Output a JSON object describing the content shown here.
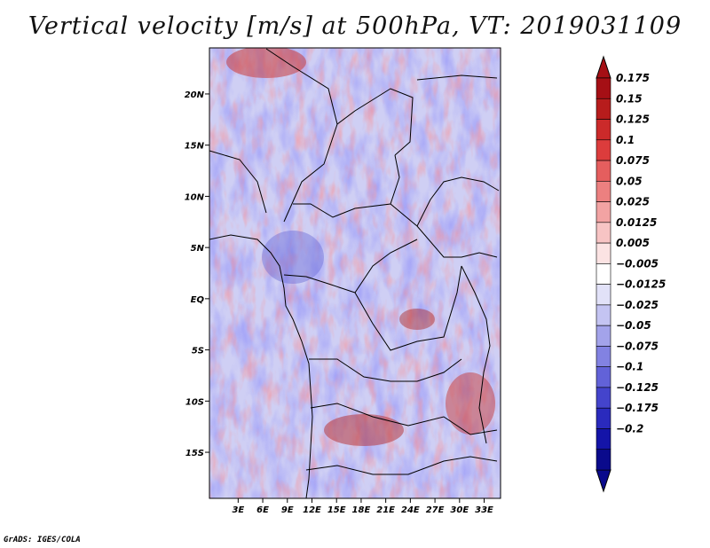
{
  "title": "Vertical velocity [m/s] at 500hPa, VT: 2019031109",
  "credit": "GrADS: IGES/COLA",
  "map": {
    "region": "Central and Southern Africa",
    "lat_range": [
      -19.5,
      24.5
    ],
    "lon_range": [
      -0.5,
      35.0
    ],
    "lat_ticks": [
      {
        "value": 20,
        "label": "20N"
      },
      {
        "value": 15,
        "label": "15N"
      },
      {
        "value": 10,
        "label": "10N"
      },
      {
        "value": 5,
        "label": "5N"
      },
      {
        "value": 0,
        "label": "EQ"
      },
      {
        "value": -5,
        "label": "5S"
      },
      {
        "value": -10,
        "label": "10S"
      },
      {
        "value": -15,
        "label": "15S"
      }
    ],
    "lon_ticks": [
      {
        "value": 3,
        "label": "3E"
      },
      {
        "value": 6,
        "label": "6E"
      },
      {
        "value": 9,
        "label": "9E"
      },
      {
        "value": 12,
        "label": "12E"
      },
      {
        "value": 15,
        "label": "15E"
      },
      {
        "value": 18,
        "label": "18E"
      },
      {
        "value": 21,
        "label": "21E"
      },
      {
        "value": 24,
        "label": "24E"
      },
      {
        "value": 27,
        "label": "27E"
      },
      {
        "value": 30,
        "label": "30E"
      },
      {
        "value": 33,
        "label": "33E"
      }
    ]
  },
  "colorbar": {
    "levels": [
      "0.175",
      "0.15",
      "0.125",
      "0.1",
      "0.075",
      "0.05",
      "0.025",
      "0.0125",
      "0.005",
      "−0.005",
      "−0.0125",
      "−0.025",
      "−0.05",
      "−0.075",
      "−0.1",
      "−0.125",
      "−0.175",
      "−0.2"
    ],
    "colors": [
      "#a50f15",
      "#b71c1c",
      "#cb2a2a",
      "#dc3c3c",
      "#e55e5e",
      "#ec8080",
      "#f2a3a3",
      "#f7c4c4",
      "#fbe3e3",
      "#ffffff",
      "#e2e2f8",
      "#c4c4f2",
      "#a3a3ea",
      "#8282e2",
      "#6262d8",
      "#4444cc",
      "#2a2abd",
      "#1414a8",
      "#0a0a8c"
    ],
    "top_arrow_color": "#a50f15",
    "bottom_arrow_color": "#0a0a8c"
  }
}
